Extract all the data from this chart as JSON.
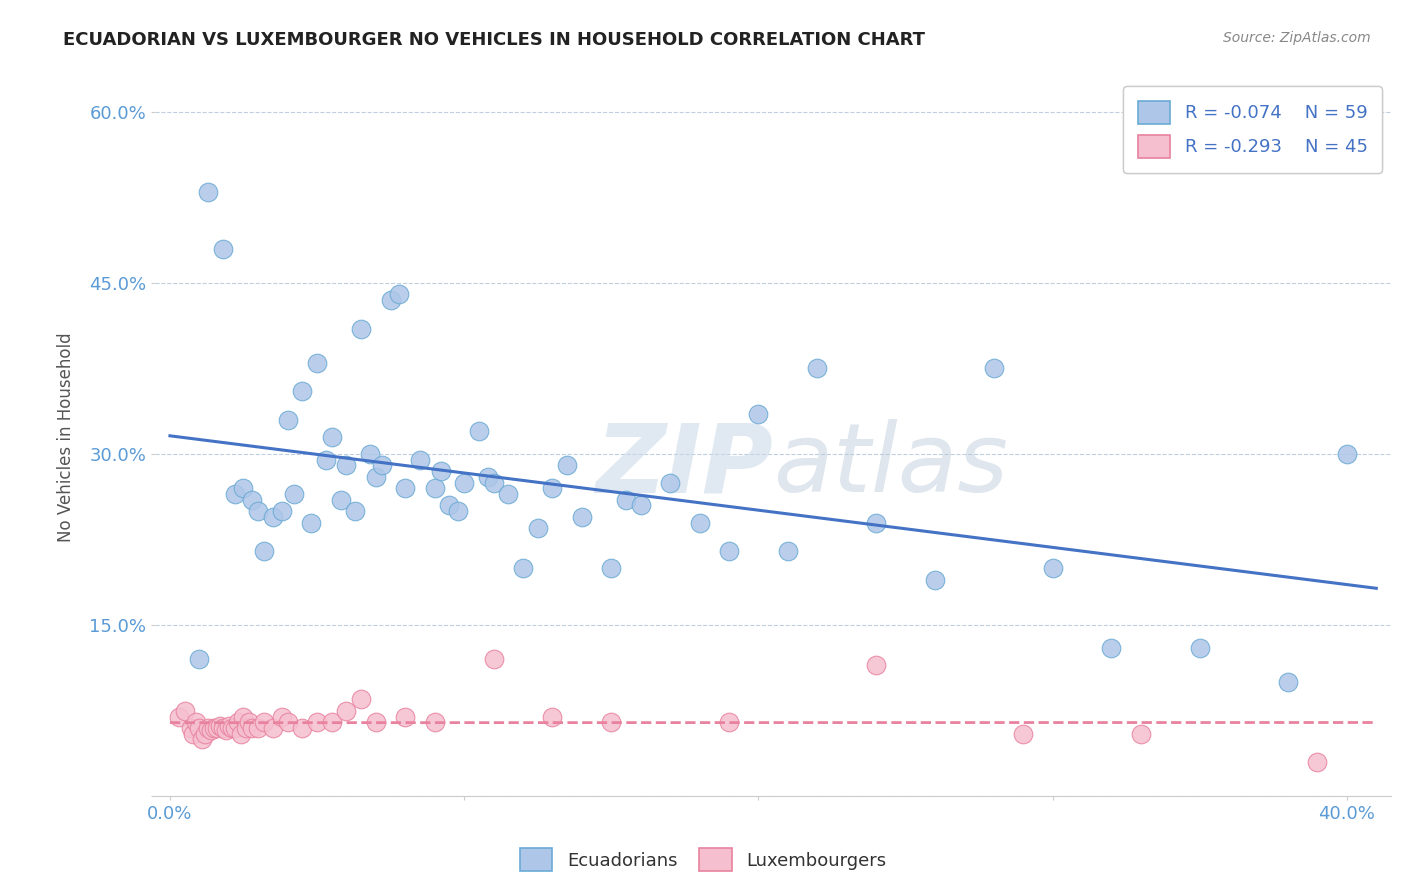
{
  "title": "ECUADORIAN VS LUXEMBOURGER NO VEHICLES IN HOUSEHOLD CORRELATION CHART",
  "source": "Source: ZipAtlas.com",
  "ylabel": "No Vehicles in Household",
  "xlim": [
    -0.005,
    0.415
  ],
  "ylim": [
    0.0,
    0.63
  ],
  "xticks": [
    0.0,
    0.1,
    0.2,
    0.3,
    0.4
  ],
  "xtick_labels": [
    "0.0%",
    "",
    "",
    "",
    "40.0%"
  ],
  "yticks": [
    0.0,
    0.15,
    0.3,
    0.45,
    0.6
  ],
  "ytick_labels": [
    "",
    "15.0%",
    "30.0%",
    "45.0%",
    "60.0%"
  ],
  "watermark_zip": "ZIP",
  "watermark_atlas": "atlas",
  "legend_R1": "R = -0.074",
  "legend_N1": "N = 59",
  "legend_R2": "R = -0.293",
  "legend_N2": "N = 45",
  "ecu_fill": "#aec6e8",
  "ecu_edge": "#6aaad4",
  "lux_fill": "#f5bfcf",
  "lux_edge": "#e8829e",
  "trendline_ecu": "#4472c4",
  "trendline_lux": "#e8829e",
  "ecuadorians_x": [
    0.01,
    0.013,
    0.018,
    0.022,
    0.025,
    0.028,
    0.03,
    0.032,
    0.035,
    0.038,
    0.04,
    0.042,
    0.045,
    0.048,
    0.05,
    0.053,
    0.055,
    0.058,
    0.06,
    0.063,
    0.065,
    0.068,
    0.07,
    0.072,
    0.075,
    0.078,
    0.08,
    0.085,
    0.09,
    0.092,
    0.095,
    0.098,
    0.1,
    0.105,
    0.108,
    0.11,
    0.115,
    0.12,
    0.125,
    0.13,
    0.135,
    0.14,
    0.15,
    0.155,
    0.16,
    0.17,
    0.18,
    0.19,
    0.2,
    0.21,
    0.22,
    0.24,
    0.26,
    0.28,
    0.3,
    0.32,
    0.35,
    0.38,
    0.4
  ],
  "ecuadorians_y": [
    0.12,
    0.53,
    0.48,
    0.265,
    0.27,
    0.26,
    0.25,
    0.215,
    0.245,
    0.25,
    0.33,
    0.265,
    0.355,
    0.24,
    0.38,
    0.295,
    0.315,
    0.26,
    0.29,
    0.25,
    0.41,
    0.3,
    0.28,
    0.29,
    0.435,
    0.44,
    0.27,
    0.295,
    0.27,
    0.285,
    0.255,
    0.25,
    0.275,
    0.32,
    0.28,
    0.275,
    0.265,
    0.2,
    0.235,
    0.27,
    0.29,
    0.245,
    0.2,
    0.26,
    0.255,
    0.275,
    0.24,
    0.215,
    0.335,
    0.215,
    0.375,
    0.24,
    0.19,
    0.375,
    0.2,
    0.13,
    0.13,
    0.1,
    0.3
  ],
  "luxembourgers_x": [
    0.003,
    0.005,
    0.007,
    0.008,
    0.009,
    0.01,
    0.011,
    0.012,
    0.013,
    0.014,
    0.015,
    0.016,
    0.017,
    0.018,
    0.019,
    0.02,
    0.021,
    0.022,
    0.023,
    0.024,
    0.025,
    0.026,
    0.027,
    0.028,
    0.03,
    0.032,
    0.035,
    0.038,
    0.04,
    0.045,
    0.05,
    0.055,
    0.06,
    0.065,
    0.07,
    0.08,
    0.09,
    0.11,
    0.13,
    0.15,
    0.19,
    0.24,
    0.29,
    0.33,
    0.39
  ],
  "luxembourgers_y": [
    0.07,
    0.075,
    0.06,
    0.055,
    0.065,
    0.06,
    0.05,
    0.055,
    0.06,
    0.058,
    0.06,
    0.06,
    0.062,
    0.06,
    0.058,
    0.062,
    0.06,
    0.06,
    0.065,
    0.055,
    0.07,
    0.06,
    0.065,
    0.06,
    0.06,
    0.065,
    0.06,
    0.07,
    0.065,
    0.06,
    0.065,
    0.065,
    0.075,
    0.085,
    0.065,
    0.07,
    0.065,
    0.12,
    0.07,
    0.065,
    0.065,
    0.115,
    0.055,
    0.055,
    0.03
  ]
}
